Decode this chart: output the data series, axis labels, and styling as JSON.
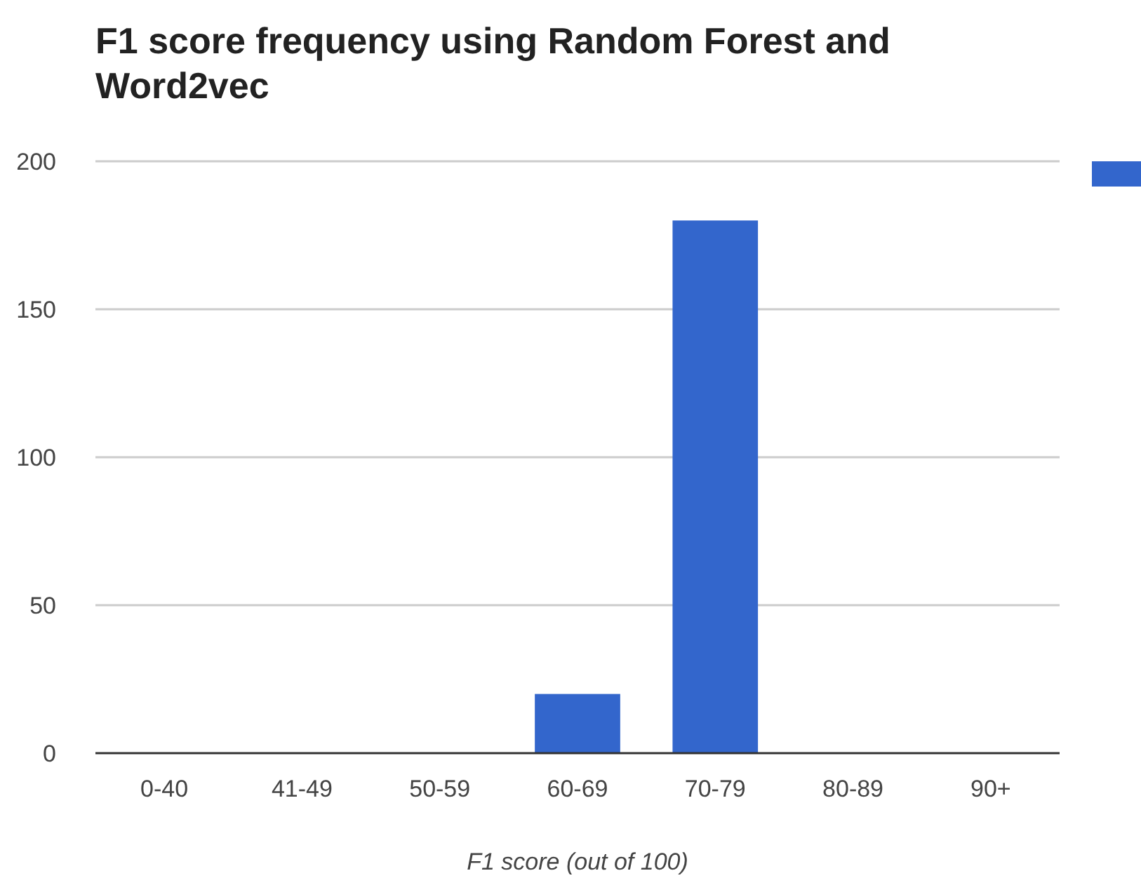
{
  "chart_data": {
    "type": "bar",
    "title": "F1 score frequency using Random Forest and Word2vec",
    "xlabel": "F1 score (out of 100)",
    "categories": [
      "0-40",
      "41-49",
      "50-59",
      "60-69",
      "70-79",
      "80-89",
      "90+"
    ],
    "series": [
      {
        "color": "#3366cc",
        "values": [
          0,
          0,
          0,
          20,
          180,
          0,
          0
        ]
      }
    ],
    "ylim": [
      0,
      200
    ],
    "yticks": [
      0,
      50,
      100,
      150,
      200
    ],
    "grid": "y"
  }
}
